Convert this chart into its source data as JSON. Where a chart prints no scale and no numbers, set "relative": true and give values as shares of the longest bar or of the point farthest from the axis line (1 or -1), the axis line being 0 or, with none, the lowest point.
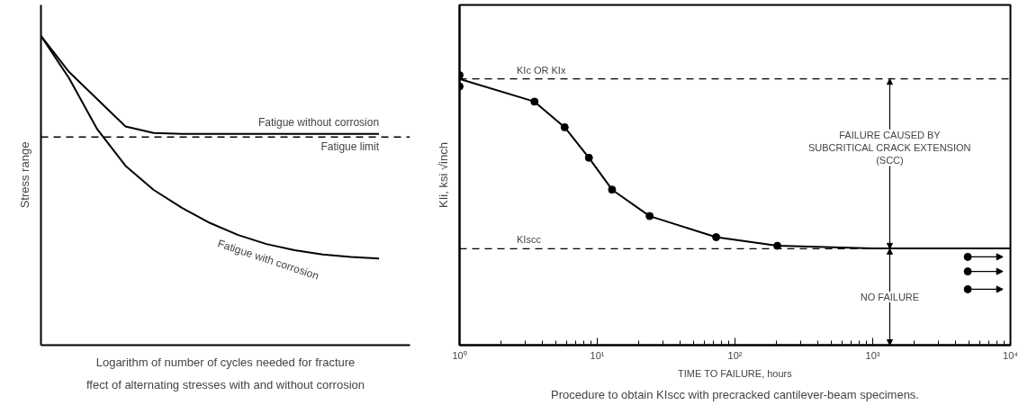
{
  "chart_data": [
    {
      "type": "line",
      "title": "ffect of alternating stresses with and without corrosion",
      "xlabel": "Logarithm of number of cycles needed for fracture",
      "ylabel": "Stress range",
      "relative": true,
      "tick_labels": false,
      "grid": false,
      "marker": "none",
      "line_style": "solid",
      "categories": [
        null,
        null,
        null,
        null,
        null,
        null,
        null,
        null,
        null,
        null,
        null,
        null,
        null
      ],
      "series": [
        {
          "name": "Fatigue without corrosion",
          "color": "#000000",
          "values": [
            1.0,
            0.883,
            0.795,
            0.707,
            0.686,
            0.683,
            0.683,
            0.683,
            0.683,
            0.683,
            0.683,
            0.683,
            0.683
          ]
        },
        {
          "name": "Fatigue with corrosion",
          "color": "#000000",
          "values": [
            1.0,
            0.863,
            0.698,
            0.58,
            0.502,
            0.444,
            0.395,
            0.356,
            0.327,
            0.307,
            0.293,
            0.285,
            0.28
          ]
        }
      ],
      "ref_lines": [
        {
          "axis": "y",
          "value": 0.673,
          "label": "Fatigue limit",
          "line_style": "dashed",
          "color": "#000000"
        }
      ]
    },
    {
      "type": "scatter",
      "title": "Procedure to obtain KIscc with precracked cantilever-beam specimens.",
      "xlabel": "TIME TO FAILURE, hours",
      "ylabel": "KIi, ksi √inch",
      "relative": true,
      "log": "x",
      "tick_labels": "x",
      "grid": false,
      "xlim": [
        1,
        10000
      ],
      "xticks": [
        {
          "value": 1,
          "label": "10⁰"
        },
        {
          "value": 10,
          "label": "10¹"
        },
        {
          "value": 100,
          "label": "10²"
        },
        {
          "value": 1000,
          "label": "10³"
        },
        {
          "value": 10000,
          "label": "10⁴"
        }
      ],
      "series": [
        {
          "type": "line",
          "color": "#000000",
          "marker": "none",
          "line_style": "solid",
          "x": [
            1,
            3.5,
            5.8,
            8.7,
            12.8,
            24,
            73,
            203,
            1000,
            10000
          ],
          "values": [
            0.986,
            0.902,
            0.807,
            0.694,
            0.576,
            0.478,
            0.4,
            0.368,
            0.358,
            0.358
          ]
        },
        {
          "type": "scatter",
          "color": "#000000",
          "marker": "circle",
          "x": [
            1,
            1,
            3.5,
            5.8,
            8.7,
            12.8,
            24,
            73,
            203
          ],
          "values": [
            1.0,
            0.958,
            0.902,
            0.807,
            0.694,
            0.576,
            0.478,
            0.4,
            0.368
          ]
        },
        {
          "type": "scatter",
          "color": "#000000",
          "marker": "circle",
          "x": [
            4900,
            4900,
            4900
          ],
          "values": [
            0.327,
            0.273,
            0.207
          ]
        }
      ],
      "ref_lines": [
        {
          "axis": "y",
          "value": 0.986,
          "label": "KIc OR KIx",
          "line_style": "dashed",
          "color": "#000000"
        },
        {
          "axis": "y",
          "value": 0.357,
          "label": "KIscc",
          "line_style": "dashed",
          "color": "#000000"
        }
      ],
      "annotations": [
        "FAILURE CAUSED BY\nSUBCRITICAL CRACK EXTENSION\n(SCC)",
        "NO FAILURE"
      ]
    }
  ]
}
